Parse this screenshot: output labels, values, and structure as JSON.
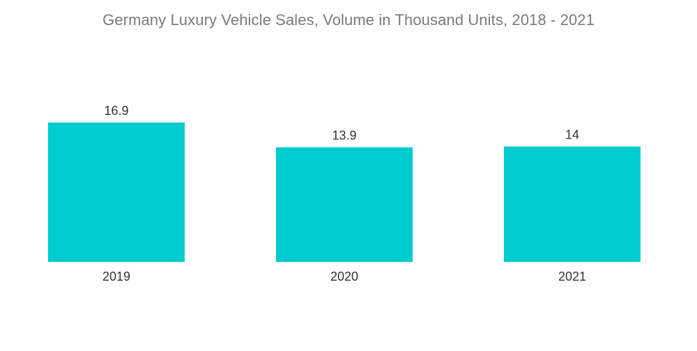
{
  "chart_data": {
    "type": "bar",
    "title": "Germany Luxury Vehicle Sales, Volume in Thousand Units, 2018 - 2021",
    "categories": [
      "2019",
      "2020",
      "2021"
    ],
    "values": [
      16.9,
      13.9,
      14
    ],
    "value_labels": [
      "16.9",
      "13.9",
      "14"
    ],
    "xlabel": "",
    "ylabel": "",
    "ylim": [
      0,
      16.9
    ],
    "grid": false,
    "legend": "none",
    "bar_color": "#00cccf"
  }
}
